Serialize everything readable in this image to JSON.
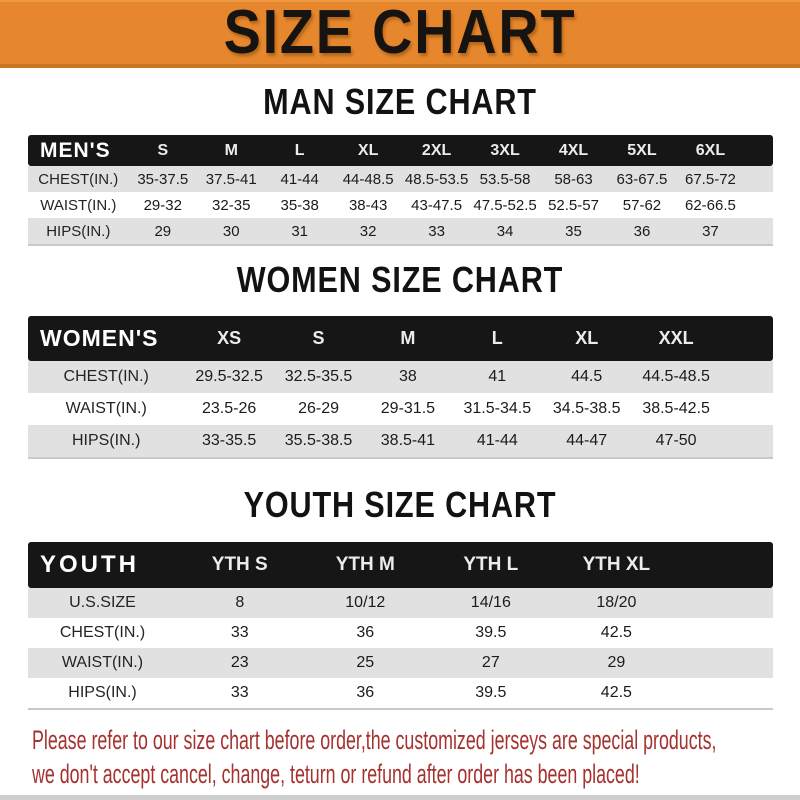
{
  "banner": {
    "title": "SIZE CHART"
  },
  "colors": {
    "banner_bg": "#E6872D",
    "banner_border": "#C97722",
    "header_bar": "#161616",
    "row_stripe": "#E1E1E1",
    "footer_text": "#A63230"
  },
  "sections": [
    {
      "heading": "MAN SIZE CHART",
      "header_label": "MEN'S",
      "columns": [
        "S",
        "M",
        "L",
        "XL",
        "2XL",
        "3XL",
        "4XL",
        "5XL",
        "6XL"
      ],
      "rows": [
        {
          "label": "CHEST(IN.)",
          "values": [
            "35-37.5",
            "37.5-41",
            "41-44",
            "44-48.5",
            "48.5-53.5",
            "53.5-58",
            "58-63",
            "63-67.5",
            "67.5-72"
          ]
        },
        {
          "label": "WAIST(IN.)",
          "values": [
            "29-32",
            "32-35",
            "35-38",
            "38-43",
            "43-47.5",
            "47.5-52.5",
            "52.5-57",
            "57-62",
            "62-66.5"
          ]
        },
        {
          "label": "HIPS(IN.)",
          "values": [
            "29",
            "30",
            "31",
            "32",
            "33",
            "34",
            "35",
            "36",
            "37"
          ]
        }
      ]
    },
    {
      "heading": "WOMEN SIZE CHART",
      "header_label": "WOMEN'S",
      "columns": [
        "XS",
        "S",
        "M",
        "L",
        "XL",
        "XXL"
      ],
      "rows": [
        {
          "label": "CHEST(IN.)",
          "values": [
            "29.5-32.5",
            "32.5-35.5",
            "38",
            "41",
            "44.5",
            "44.5-48.5"
          ]
        },
        {
          "label": "WAIST(IN.)",
          "values": [
            "23.5-26",
            "26-29",
            "29-31.5",
            "31.5-34.5",
            "34.5-38.5",
            "38.5-42.5"
          ]
        },
        {
          "label": "HIPS(IN.)",
          "values": [
            "33-35.5",
            "35.5-38.5",
            "38.5-41",
            "41-44",
            "44-47",
            "47-50"
          ]
        }
      ]
    },
    {
      "heading": "YOUTH SIZE CHART",
      "header_label": "YOUTH",
      "columns": [
        "YTH S",
        "YTH M",
        "YTH L",
        "YTH XL"
      ],
      "rows": [
        {
          "label": "U.S.SIZE",
          "values": [
            "8",
            "10/12",
            "14/16",
            "18/20"
          ]
        },
        {
          "label": "CHEST(IN.)",
          "values": [
            "33",
            "36",
            "39.5",
            "42.5"
          ]
        },
        {
          "label": "WAIST(IN.)",
          "values": [
            "23",
            "25",
            "27",
            "29"
          ]
        },
        {
          "label": "HIPS(IN.)",
          "values": [
            "33",
            "36",
            "39.5",
            "42.5"
          ]
        }
      ]
    }
  ],
  "footer": {
    "line1": "Please refer to our size chart before order,the customized jerseys are special products,",
    "line2": "we don't accept cancel, change, teturn or refund after order has been placed!"
  }
}
